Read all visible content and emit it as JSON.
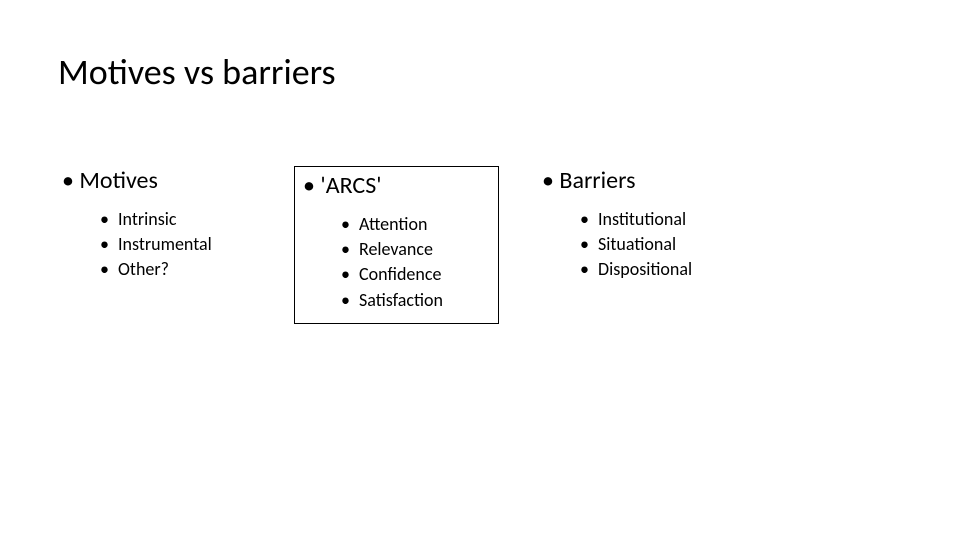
{
  "title": "Motives vs barriers",
  "background_color": "#ffffff",
  "text_color": "#000000",
  "title_fontsize": 36,
  "header_fontsize": 24,
  "item_fontsize": 18,
  "columns": [
    {
      "header": "Motives",
      "boxed": false,
      "items": [
        "Intrinsic",
        "Instrumental",
        "Other?"
      ]
    },
    {
      "header": "'ARCS'",
      "boxed": true,
      "items": [
        "Attention",
        "Relevance",
        "Confidence",
        "Satisfaction"
      ]
    },
    {
      "header": "Barriers",
      "boxed": false,
      "items": [
        "Institutional",
        "Situational",
        "Dispositional"
      ]
    }
  ]
}
